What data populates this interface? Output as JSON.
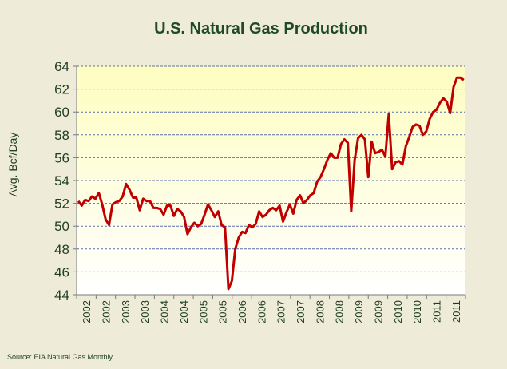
{
  "colors": {
    "background": "#eeecd8",
    "plot_top": "#fefdc0",
    "plot_bottom": "#ffffff",
    "line": "#c00000",
    "grid": "#5a6fa8",
    "text": "#1f3e23",
    "title": "#1f4a25"
  },
  "source": "Source: EIA Natural Gas Monthly",
  "chart_data": {
    "type": "line",
    "title": "U.S. Natural  Gas Production",
    "xlabel": "",
    "ylabel": "Avg. Bcf/Day",
    "ylim": [
      44,
      64
    ],
    "yticks": [
      44,
      46,
      48,
      50,
      52,
      54,
      56,
      58,
      60,
      62,
      64
    ],
    "xlim": [
      "2002-01",
      "2011-06"
    ],
    "xtick_labels": [
      "2002",
      "2002",
      "2003",
      "2003",
      "2004",
      "2004",
      "2005",
      "2005",
      "2006",
      "2006",
      "2007",
      "2007",
      "2008",
      "2008",
      "2009",
      "2009",
      "2010",
      "2010",
      "2011",
      "2011"
    ],
    "grid": "horizontal dashed",
    "legend": "none",
    "series": [
      {
        "values": [
          [
            "2002-01",
            52.2
          ],
          [
            "2002-02",
            51.8
          ],
          [
            "2002-03",
            52.3
          ],
          [
            "2002-04",
            52.2
          ],
          [
            "2002-05",
            52.6
          ],
          [
            "2002-06",
            52.4
          ],
          [
            "2002-07",
            52.9
          ],
          [
            "2002-08",
            51.9
          ],
          [
            "2002-09",
            50.6
          ],
          [
            "2002-10",
            50.1
          ],
          [
            "2002-11",
            51.9
          ],
          [
            "2002-12",
            52.1
          ],
          [
            "2003-01",
            52.2
          ],
          [
            "2003-02",
            52.6
          ],
          [
            "2003-03",
            53.7
          ],
          [
            "2003-04",
            53.2
          ],
          [
            "2003-05",
            52.5
          ],
          [
            "2003-06",
            52.5
          ],
          [
            "2003-07",
            51.4
          ],
          [
            "2003-08",
            52.4
          ],
          [
            "2003-09",
            52.2
          ],
          [
            "2003-10",
            52.2
          ],
          [
            "2003-11",
            51.6
          ],
          [
            "2003-12",
            51.6
          ],
          [
            "2004-01",
            51.5
          ],
          [
            "2004-02",
            51.0
          ],
          [
            "2004-03",
            51.8
          ],
          [
            "2004-04",
            51.8
          ],
          [
            "2004-05",
            50.9
          ],
          [
            "2004-06",
            51.5
          ],
          [
            "2004-07",
            51.3
          ],
          [
            "2004-08",
            50.8
          ],
          [
            "2004-09",
            49.3
          ],
          [
            "2004-10",
            49.9
          ],
          [
            "2004-11",
            50.3
          ],
          [
            "2004-12",
            50.0
          ],
          [
            "2005-01",
            50.2
          ],
          [
            "2005-02",
            51.0
          ],
          [
            "2005-03",
            51.9
          ],
          [
            "2005-04",
            51.4
          ],
          [
            "2005-05",
            50.8
          ],
          [
            "2005-06",
            51.3
          ],
          [
            "2005-07",
            50.1
          ],
          [
            "2005-08",
            49.9
          ],
          [
            "2005-09",
            44.5
          ],
          [
            "2005-10",
            45.2
          ],
          [
            "2005-11",
            48.0
          ],
          [
            "2005-12",
            49.0
          ],
          [
            "2006-01",
            49.5
          ],
          [
            "2006-02",
            49.4
          ],
          [
            "2006-03",
            50.1
          ],
          [
            "2006-04",
            49.9
          ],
          [
            "2006-05",
            50.2
          ],
          [
            "2006-06",
            51.3
          ],
          [
            "2006-07",
            50.8
          ],
          [
            "2006-08",
            51.0
          ],
          [
            "2006-09",
            51.4
          ],
          [
            "2006-10",
            51.6
          ],
          [
            "2006-11",
            51.4
          ],
          [
            "2006-12",
            51.8
          ],
          [
            "2007-01",
            50.4
          ],
          [
            "2007-02",
            51.2
          ],
          [
            "2007-03",
            51.9
          ],
          [
            "2007-04",
            51.1
          ],
          [
            "2007-05",
            52.3
          ],
          [
            "2007-06",
            52.7
          ],
          [
            "2007-07",
            52.0
          ],
          [
            "2007-08",
            52.3
          ],
          [
            "2007-09",
            52.7
          ],
          [
            "2007-10",
            52.9
          ],
          [
            "2007-11",
            53.9
          ],
          [
            "2007-12",
            54.3
          ],
          [
            "2008-01",
            55.0
          ],
          [
            "2008-02",
            55.8
          ],
          [
            "2008-03",
            56.4
          ],
          [
            "2008-04",
            56.0
          ],
          [
            "2008-05",
            56.0
          ],
          [
            "2008-06",
            57.2
          ],
          [
            "2008-07",
            57.6
          ],
          [
            "2008-08",
            57.3
          ],
          [
            "2008-09",
            51.3
          ],
          [
            "2008-10",
            55.8
          ],
          [
            "2008-11",
            57.7
          ],
          [
            "2008-12",
            58.0
          ],
          [
            "2009-01",
            57.6
          ],
          [
            "2009-02",
            54.3
          ],
          [
            "2009-03",
            57.4
          ],
          [
            "2009-04",
            56.4
          ],
          [
            "2009-05",
            56.5
          ],
          [
            "2009-06",
            56.7
          ],
          [
            "2009-07",
            56.1
          ],
          [
            "2009-08",
            59.8
          ],
          [
            "2009-09",
            55.0
          ],
          [
            "2009-10",
            55.6
          ],
          [
            "2009-11",
            55.7
          ],
          [
            "2009-12",
            55.4
          ],
          [
            "2010-01",
            57.0
          ],
          [
            "2010-02",
            57.8
          ],
          [
            "2010-03",
            58.7
          ],
          [
            "2010-04",
            58.9
          ],
          [
            "2010-05",
            58.8
          ],
          [
            "2010-06",
            58.0
          ],
          [
            "2010-07",
            58.3
          ],
          [
            "2010-08",
            59.4
          ],
          [
            "2010-09",
            60.0
          ],
          [
            "2010-10",
            60.2
          ],
          [
            "2010-11",
            60.8
          ],
          [
            "2010-12",
            61.2
          ],
          [
            "2011-01",
            60.9
          ],
          [
            "2011-02",
            59.9
          ],
          [
            "2011-03",
            62.2
          ],
          [
            "2011-04",
            63.0
          ],
          [
            "2011-05",
            63.0
          ],
          [
            "2011-06",
            62.8
          ]
        ]
      }
    ]
  }
}
